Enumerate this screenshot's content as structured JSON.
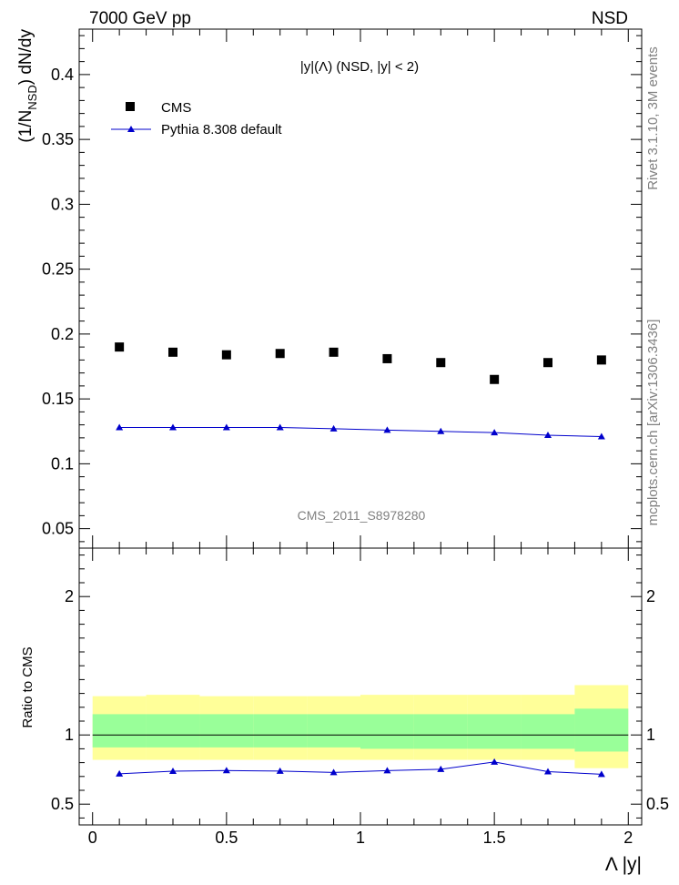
{
  "header": {
    "left": "7000 GeV pp",
    "right": "NSD"
  },
  "side_labels": {
    "rivet": "Rivet 3.1.10,  3M events",
    "mcplots": "mcplots.cern.ch [arXiv:1306.3436]"
  },
  "watermark": "CMS_2011_S8978280",
  "chart_data": [
    {
      "type": "scatter",
      "title": "|y|(Λ) (NSD, |y| < 2)",
      "ylabel": {
        "pre": "(1/N",
        "sub": "NSD",
        "post": ") dN/dy"
      },
      "xlim": [
        -0.05,
        2.05
      ],
      "ylim": [
        0.035,
        0.435
      ],
      "yticks": [
        0.05,
        0.1,
        0.15,
        0.2,
        0.25,
        0.3,
        0.35,
        0.4
      ],
      "ytick_labels": [
        "0.05",
        "0.1",
        "0.15",
        "0.2",
        "0.25",
        "0.3",
        "0.35",
        "0.4"
      ],
      "legend_position": "top-left",
      "series": [
        {
          "name": "CMS",
          "color": "#000000",
          "marker": "square",
          "x": [
            0.1,
            0.3,
            0.5,
            0.7,
            0.9,
            1.1,
            1.3,
            1.5,
            1.7,
            1.9
          ],
          "y": [
            0.19,
            0.186,
            0.184,
            0.185,
            0.186,
            0.181,
            0.178,
            0.165,
            0.178,
            0.18
          ]
        },
        {
          "name": "Pythia 8.308 default",
          "color": "#0000cc",
          "marker": "triangle",
          "x": [
            0.1,
            0.3,
            0.5,
            0.7,
            0.9,
            1.1,
            1.3,
            1.5,
            1.7,
            1.9
          ],
          "y": [
            0.128,
            0.128,
            0.128,
            0.128,
            0.127,
            0.126,
            0.125,
            0.124,
            0.122,
            0.121
          ]
        }
      ]
    },
    {
      "type": "line",
      "ylabel": "Ratio to CMS",
      "xlabel": "Λ |y|",
      "xlim": [
        -0.05,
        2.05
      ],
      "ylim": [
        0.35,
        2.35
      ],
      "yticks": [
        0.5,
        1,
        2
      ],
      "ytick_labels": [
        "0.5",
        "1",
        "2"
      ],
      "xticks": [
        0,
        0.5,
        1,
        1.5,
        2
      ],
      "xtick_labels": [
        "0",
        "0.5",
        "1",
        "1.5",
        "2"
      ],
      "reference_line": 1,
      "bands": {
        "edges": [
          0,
          0.2,
          0.4,
          0.6,
          0.8,
          1.0,
          1.2,
          1.4,
          1.6,
          1.8,
          2.0
        ],
        "yellow": {
          "color": "#ffff99",
          "low": [
            0.82,
            0.82,
            0.82,
            0.82,
            0.82,
            0.82,
            0.82,
            0.82,
            0.82,
            0.76
          ],
          "high": [
            1.28,
            1.29,
            1.28,
            1.28,
            1.28,
            1.29,
            1.29,
            1.29,
            1.29,
            1.36
          ]
        },
        "green": {
          "color": "#99ff99",
          "low": [
            0.91,
            0.91,
            0.91,
            0.91,
            0.91,
            0.9,
            0.9,
            0.9,
            0.9,
            0.88
          ],
          "high": [
            1.15,
            1.15,
            1.15,
            1.15,
            1.15,
            1.15,
            1.15,
            1.15,
            1.15,
            1.19
          ]
        }
      },
      "series": [
        {
          "name": "Pythia 8.308 default",
          "color": "#0000cc",
          "marker": "triangle",
          "x": [
            0.1,
            0.3,
            0.5,
            0.7,
            0.9,
            1.1,
            1.3,
            1.5,
            1.7,
            1.9
          ],
          "y": [
            0.719,
            0.738,
            0.743,
            0.739,
            0.729,
            0.742,
            0.752,
            0.805,
            0.735,
            0.716
          ]
        }
      ]
    }
  ]
}
